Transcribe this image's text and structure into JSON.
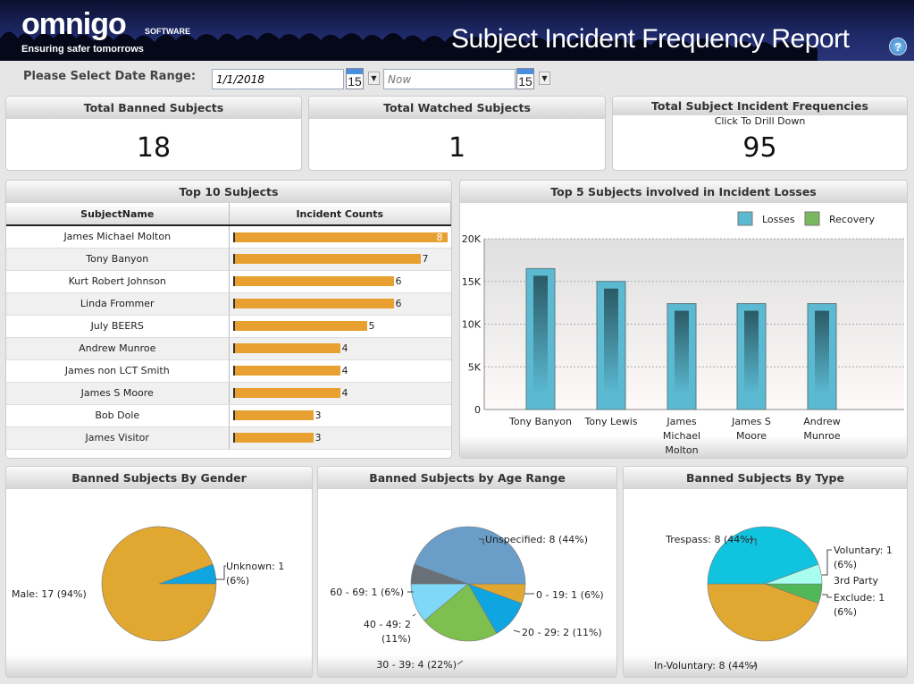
{
  "header": {
    "logo": "omnigo",
    "logo_sub": "SOFTWARE",
    "tagline": "Ensuring safer tomorrows",
    "title": "Subject Incident Frequency Report",
    "help_icon": "help-icon"
  },
  "date_range": {
    "label": "Please Select Date Range:",
    "start_value": "1/1/2018",
    "end_placeholder": "Now",
    "calendar_day": "15"
  },
  "kpis": [
    {
      "title": "Total Banned Subjects",
      "subtitle": "",
      "value": "18"
    },
    {
      "title": "Total Watched Subjects",
      "subtitle": "",
      "value": "1"
    },
    {
      "title": "Total Subject Incident Frequencies",
      "subtitle": "Click To Drill Down",
      "value": "95"
    }
  ],
  "top10": {
    "title": "Top 10 Subjects",
    "columns": [
      "SubjectName",
      "Incident Counts"
    ],
    "rows": [
      [
        "James Michael Molton",
        8
      ],
      [
        "Tony  Banyon",
        7
      ],
      [
        "Kurt Robert Johnson",
        6
      ],
      [
        "Linda  Frommer",
        6
      ],
      [
        "July  BEERS",
        5
      ],
      [
        "Andrew  Munroe",
        4
      ],
      [
        "James non LCT Smith",
        4
      ],
      [
        "James S Moore",
        4
      ],
      [
        "Bob  Dole",
        3
      ],
      [
        "James  Visitor",
        3
      ]
    ],
    "bar_color": "#e8a030"
  },
  "chart_data": [
    {
      "type": "bar",
      "title": "Top 5 Subjects involved in Incident Losses",
      "categories": [
        "Tony  Banyon",
        "Tony  Lewis",
        "James Michael Molton",
        "James S Moore",
        "Andrew Munroe"
      ],
      "series": [
        {
          "name": "Losses",
          "values": [
            16500,
            15000,
            12400,
            12400,
            12400
          ],
          "color": "#5bbad2"
        },
        {
          "name": "Recovery",
          "values": [
            0,
            0,
            0,
            0,
            0
          ],
          "color": "#7ab860"
        }
      ],
      "ylim": [
        0,
        20000
      ],
      "yticks": [
        "0",
        "5K",
        "10K",
        "15K",
        "20K"
      ],
      "legend": "top-right",
      "grid": true
    },
    {
      "type": "pie",
      "title": "Banned Subjects By Gender",
      "slices": [
        {
          "label": "Unknown: 1 (6%)",
          "value": 1,
          "color": "#0ea5e0"
        },
        {
          "label": "Male: 17 (94%)",
          "value": 17,
          "color": "#e0a830"
        }
      ]
    },
    {
      "type": "pie",
      "title": "Banned Subjects by Age Range",
      "slices": [
        {
          "label": "0 - 19: 1 (6%)",
          "value": 1,
          "color": "#e0a830"
        },
        {
          "label": "20 - 29: 2 (11%)",
          "value": 2,
          "color": "#0ea5e0"
        },
        {
          "label": "30 - 39: 4 (22%)",
          "value": 4,
          "color": "#7ec050"
        },
        {
          "label": "40 - 49: 2 (11%)",
          "value": 2,
          "color": "#7fd8f8"
        },
        {
          "label": "60 - 69: 1 (6%)",
          "value": 1,
          "color": "#6a7078"
        },
        {
          "label": "Unspecified: 8 (44%)",
          "value": 8,
          "color": "#6a9ec8"
        }
      ]
    },
    {
      "type": "pie",
      "title": "Banned Subjects By Type",
      "slices": [
        {
          "label": "Exclude: 1 (6%)",
          "value": 1,
          "color": "#50b858"
        },
        {
          "label": "In-Voluntary: 8 (44%)",
          "value": 8,
          "color": "#e0a830"
        },
        {
          "label": "Trespass: 8 (44%)",
          "value": 8,
          "color": "#10c4e0"
        },
        {
          "label": "Voluntary: 1 (6%)",
          "value": 1,
          "color": "#a8fff0"
        },
        {
          "label": "3rd Party",
          "value": 0,
          "color": "#888888"
        }
      ]
    }
  ]
}
